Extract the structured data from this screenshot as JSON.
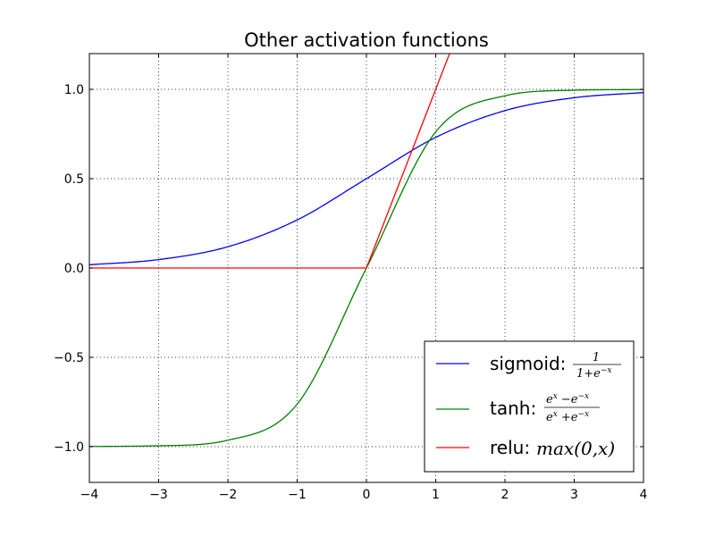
{
  "chart_data": {
    "type": "line",
    "title": "Other activation functions",
    "xlabel": "",
    "ylabel": "",
    "xlim": [
      -4,
      4
    ],
    "ylim": [
      -1.2,
      1.2
    ],
    "x_ticks": [
      -4,
      -3,
      -2,
      -1,
      0,
      1,
      2,
      3,
      4
    ],
    "x_tick_labels": [
      "−4",
      "−3",
      "−2",
      "−1",
      "0",
      "1",
      "2",
      "3",
      "4"
    ],
    "y_ticks": [
      -1.0,
      -0.5,
      0.0,
      0.5,
      1.0
    ],
    "y_tick_labels": [
      "−1.0",
      "−0.5",
      "0.0",
      "0.5",
      "1.0"
    ],
    "grid": true,
    "legend_position": "lower-right",
    "series": [
      {
        "name": "sigmoid",
        "color": "#0000ff",
        "x": [
          -4,
          -3,
          -2,
          -1,
          0,
          1,
          2,
          3,
          4
        ],
        "values": [
          0.018,
          0.047,
          0.119,
          0.269,
          0.5,
          0.731,
          0.881,
          0.953,
          0.982
        ]
      },
      {
        "name": "tanh",
        "color": "#008000",
        "x": [
          -4,
          -3,
          -2,
          -1,
          0,
          1,
          2,
          3,
          4
        ],
        "values": [
          -0.999,
          -0.995,
          -0.964,
          -0.762,
          0.0,
          0.762,
          0.964,
          0.995,
          0.999
        ]
      },
      {
        "name": "relu",
        "color": "#ff0000",
        "x": [
          -4,
          0,
          1.2
        ],
        "values": [
          0,
          0,
          1.2
        ]
      }
    ],
    "legend": [
      {
        "label": "sigmoid:",
        "formula": "sigmoid",
        "color": "#0000ff"
      },
      {
        "label": "tanh:",
        "formula": "tanh",
        "color": "#008000"
      },
      {
        "label": "relu:",
        "formula": "max(0,x)",
        "color": "#ff0000"
      }
    ]
  },
  "formula_parts": {
    "sigmoid_num": "1",
    "sigmoid_den_a": "1+e",
    "sigmoid_den_sup": "−x",
    "tanh_num_a": "e",
    "tanh_num_sup1": "x",
    "tanh_num_mid": " −e",
    "tanh_num_sup2": "−x",
    "tanh_den_a": "e",
    "tanh_den_sup1": "x",
    "tanh_den_mid": " +e",
    "tanh_den_sup2": "−x",
    "relu_formula": "max(0,x)"
  }
}
